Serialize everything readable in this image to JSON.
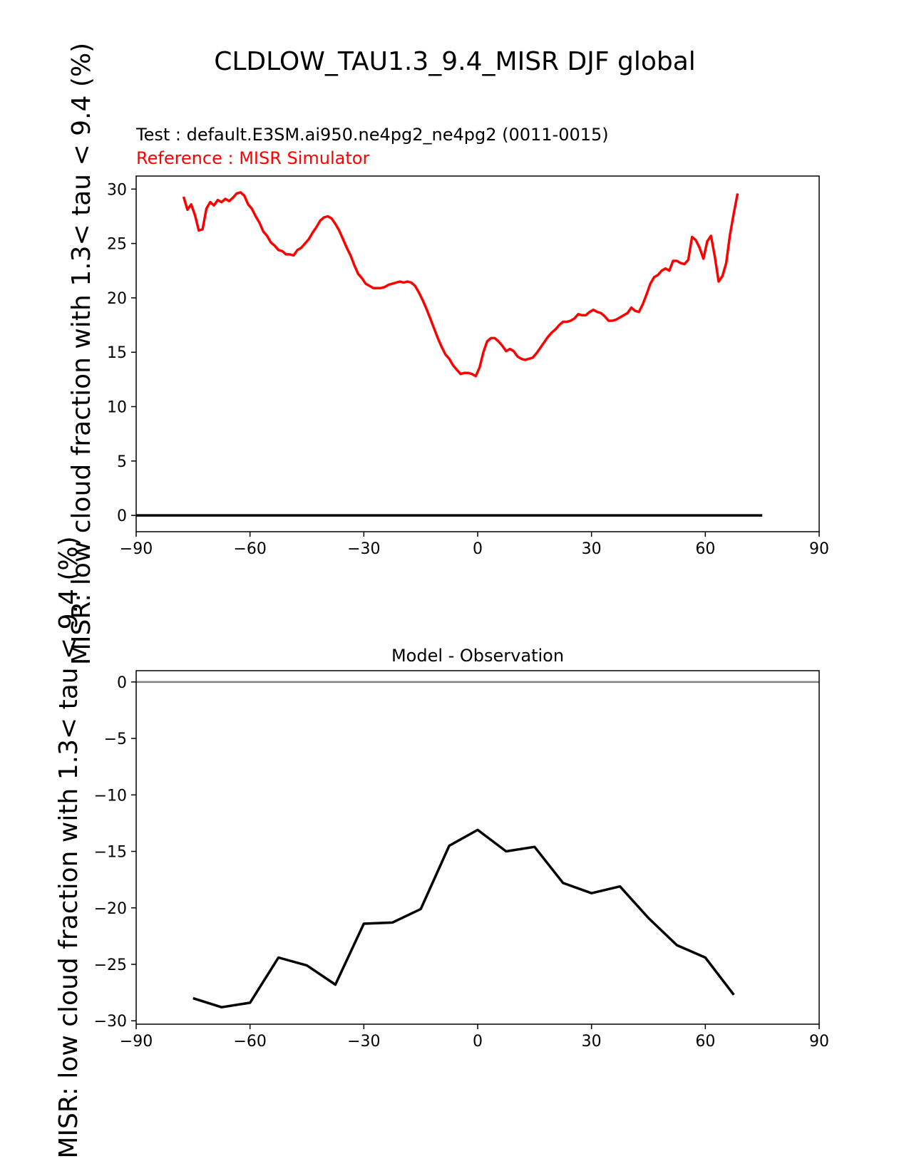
{
  "figure_title": "CLDLOW_TAU1.3_9.4_MISR DJF global",
  "test_label": "Test : default.E3SM.ai950.ne4pg2_ne4pg2 (0011-0015)",
  "reference_label": "Reference : MISR Simulator",
  "colors": {
    "test": "#000000",
    "reference": "#ff0000",
    "zero_line": "#808080"
  },
  "chart_data": [
    {
      "type": "line",
      "title": "",
      "ylabel": "MISR: low cloud fraction with 1.3< tau < 9.4 (%)",
      "xlabel": "",
      "xlim": [
        -90,
        90
      ],
      "ylim": [
        -1.5,
        31.2
      ],
      "xticks": [
        -90,
        -60,
        -30,
        0,
        30,
        60,
        90
      ],
      "xtick_labels": [
        "−90",
        "−60",
        "−30",
        "0",
        "30",
        "60",
        "90"
      ],
      "yticks": [
        0,
        5,
        10,
        15,
        20,
        25,
        30
      ],
      "ytick_labels": [
        "0",
        "5",
        "10",
        "15",
        "20",
        "25",
        "30"
      ],
      "series": [
        {
          "name": "Reference : MISR Simulator",
          "color": "#ff0000",
          "x": [
            -77.5,
            -76.5,
            -75.5,
            -74.5,
            -73.5,
            -72.5,
            -71.5,
            -70.5,
            -69.5,
            -68.5,
            -67.5,
            -66.5,
            -65.5,
            -64.5,
            -63.5,
            -62.5,
            -61.5,
            -60.5,
            -59.5,
            -58.5,
            -57.5,
            -56.5,
            -55.5,
            -54.5,
            -53.5,
            -52.5,
            -51.5,
            -50.5,
            -49.5,
            -48.5,
            -47.5,
            -46.5,
            -45.5,
            -44.5,
            -43.5,
            -42.5,
            -41.5,
            -40.5,
            -39.5,
            -38.5,
            -37.5,
            -36.5,
            -35.5,
            -34.5,
            -33.5,
            -32.5,
            -31.5,
            -30.5,
            -29.5,
            -28.5,
            -27.5,
            -26.5,
            -25.5,
            -24.5,
            -23.5,
            -22.5,
            -21.5,
            -20.5,
            -19.5,
            -18.5,
            -17.5,
            -16.5,
            -15.5,
            -14.5,
            -13.5,
            -12.5,
            -11.5,
            -10.5,
            -9.5,
            -8.5,
            -7.5,
            -6.5,
            -5.5,
            -4.5,
            -3.5,
            -2.5,
            -1.5,
            -0.5,
            0.5,
            1.5,
            2.5,
            3.5,
            4.5,
            5.5,
            6.5,
            7.5,
            8.5,
            9.5,
            10.5,
            11.5,
            12.5,
            13.5,
            14.5,
            15.5,
            16.5,
            17.5,
            18.5,
            19.5,
            20.5,
            21.5,
            22.5,
            23.5,
            24.5,
            25.5,
            26.5,
            27.5,
            28.5,
            29.5,
            30.5,
            31.5,
            32.5,
            33.5,
            34.5,
            35.5,
            36.5,
            37.5,
            38.5,
            39.5,
            40.5,
            41.5,
            42.5,
            43.5,
            44.5,
            45.5,
            46.5,
            47.5,
            48.5,
            49.5,
            50.5,
            51.5,
            52.5,
            53.5,
            54.5,
            55.5,
            56.5,
            57.5,
            58.5,
            59.5,
            60.5,
            61.5,
            62.5,
            63.5,
            64.5,
            65.5,
            66.5,
            67.5,
            68.5
          ],
          "y": [
            29.3,
            28.1,
            28.6,
            27.6,
            26.2,
            26.3,
            28.2,
            28.8,
            28.5,
            29.0,
            28.8,
            29.1,
            28.9,
            29.2,
            29.6,
            29.7,
            29.4,
            28.6,
            28.2,
            27.5,
            26.9,
            26.1,
            25.7,
            25.1,
            24.8,
            24.4,
            24.3,
            24.0,
            24.0,
            23.9,
            24.4,
            24.6,
            25.0,
            25.4,
            26.0,
            26.5,
            27.1,
            27.4,
            27.5,
            27.3,
            26.8,
            26.2,
            25.4,
            24.6,
            23.9,
            23.0,
            22.2,
            21.8,
            21.3,
            21.1,
            20.9,
            20.9,
            20.9,
            21.0,
            21.2,
            21.3,
            21.4,
            21.5,
            21.4,
            21.5,
            21.4,
            21.1,
            20.5,
            19.8,
            19.0,
            18.1,
            17.2,
            16.3,
            15.5,
            14.8,
            14.4,
            13.8,
            13.4,
            13.0,
            13.1,
            13.1,
            13.0,
            12.8,
            13.6,
            15.0,
            16.0,
            16.3,
            16.3,
            16.0,
            15.6,
            15.1,
            15.3,
            15.1,
            14.6,
            14.4,
            14.3,
            14.4,
            14.5,
            14.9,
            15.4,
            15.9,
            16.4,
            16.8,
            17.1,
            17.5,
            17.8,
            17.8,
            17.9,
            18.1,
            18.5,
            18.4,
            18.4,
            18.7,
            18.9,
            18.7,
            18.6,
            18.3,
            17.9,
            17.9,
            18.0,
            18.2,
            18.4,
            18.6,
            19.1,
            18.8,
            18.7,
            19.4,
            20.3,
            21.3,
            21.9,
            22.1,
            22.5,
            22.7,
            22.5,
            23.4,
            23.4,
            23.2,
            23.1,
            23.5,
            25.6,
            25.3,
            24.6,
            23.6,
            25.2,
            25.7,
            23.8,
            21.5,
            22.0,
            23.2,
            25.8,
            27.8,
            29.6
          ]
        },
        {
          "name": "Test : default.E3SM.ai950.ne4pg2_ne4pg2 (0011-0015)",
          "color": "#000000",
          "x": [
            -90,
            75
          ],
          "y": [
            0,
            0
          ]
        }
      ]
    },
    {
      "type": "line",
      "title": "Model - Observation",
      "ylabel": "MISR: low cloud fraction with 1.3< tau < 9.4 (%)",
      "xlabel": "",
      "xlim": [
        -90,
        90
      ],
      "ylim": [
        -30.3,
        1.0
      ],
      "xticks": [
        -90,
        -60,
        -30,
        0,
        30,
        60,
        90
      ],
      "xtick_labels": [
        "−90",
        "−60",
        "−30",
        "0",
        "30",
        "60",
        "90"
      ],
      "yticks": [
        0,
        -5,
        -10,
        -15,
        -20,
        -25,
        -30
      ],
      "ytick_labels": [
        "0",
        "−5",
        "−10",
        "−15",
        "−20",
        "−25",
        "−30"
      ],
      "zero_line": true,
      "series": [
        {
          "name": "Model - Observation",
          "color": "#000000",
          "x": [
            -75,
            -67.5,
            -60,
            -52.5,
            -45,
            -37.5,
            -30,
            -22.5,
            -15,
            -7.5,
            0,
            7.5,
            15,
            22.5,
            30,
            37.5,
            45,
            52.5,
            60,
            67.5
          ],
          "y": [
            -28.0,
            -28.8,
            -28.4,
            -24.4,
            -25.1,
            -26.8,
            -21.4,
            -21.3,
            -20.1,
            -14.5,
            -13.1,
            -15.0,
            -14.6,
            -17.8,
            -18.7,
            -18.1,
            -20.9,
            -23.3,
            -24.4,
            -27.7
          ]
        }
      ]
    }
  ]
}
